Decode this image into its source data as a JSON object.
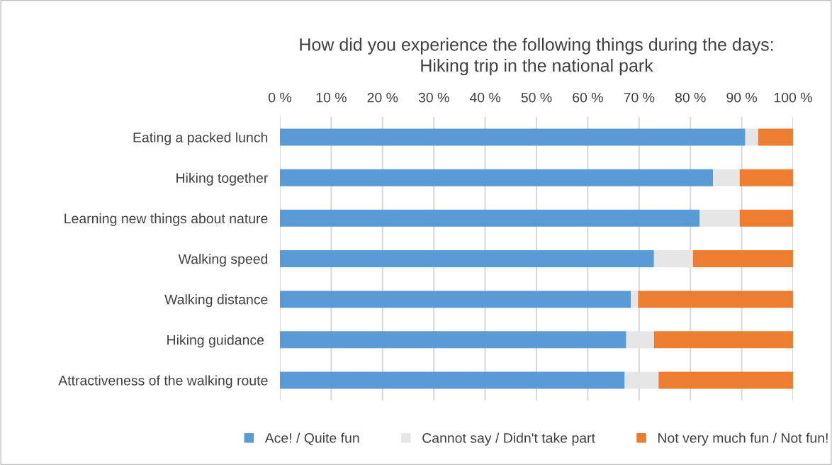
{
  "chart_data": {
    "type": "bar",
    "orientation": "horizontal",
    "stacked": true,
    "title": "How did you experience the following things during the days:\nHiking trip in the national park",
    "categories": [
      "Eating a packed lunch",
      "Hiking together",
      "Learning new things about nature",
      "Walking speed",
      "Walking distance",
      "Hiking guidance ",
      "Attractiveness of the walking route"
    ],
    "series": [
      {
        "name": "Ace! / Quite fun",
        "color": "#5b9bd5",
        "values": [
          90.7,
          84.4,
          81.8,
          72.9,
          68.4,
          67.5,
          67.2
        ]
      },
      {
        "name": "Cannot say / Didn't take part",
        "color": "#e7e6e6",
        "values": [
          2.5,
          5.2,
          7.8,
          7.6,
          1.4,
          5.4,
          6.6
        ]
      },
      {
        "name": "Not very much fun / Not fun!",
        "color": "#ed7d31",
        "values": [
          6.8,
          10.4,
          10.4,
          19.5,
          30.2,
          27.1,
          26.2
        ]
      }
    ],
    "xlim": [
      0,
      100
    ],
    "xticks": [
      {
        "value": 0,
        "label": "0 %"
      },
      {
        "value": 10,
        "label": "10 %"
      },
      {
        "value": 20,
        "label": "20 %"
      },
      {
        "value": 30,
        "label": "30 %"
      },
      {
        "value": 40,
        "label": "40 %"
      },
      {
        "value": 50,
        "label": "50 %"
      },
      {
        "value": 60,
        "label": "60 %"
      },
      {
        "value": 70,
        "label": "70 %"
      },
      {
        "value": 80,
        "label": "80 %"
      },
      {
        "value": 90,
        "label": "90 %"
      },
      {
        "value": 100,
        "label": "100 %"
      }
    ],
    "grid": "x",
    "legend": "bottom"
  }
}
